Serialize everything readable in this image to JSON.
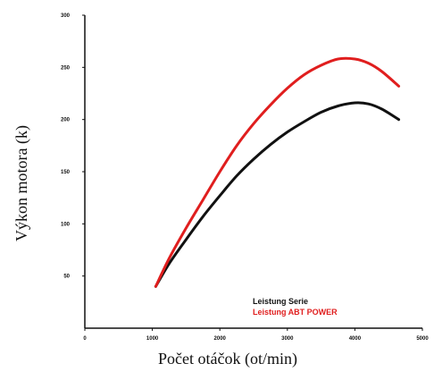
{
  "chart_data": {
    "type": "line",
    "title": "",
    "xlabel": "Počet otáčok (ot/min)",
    "ylabel": "Výkon motora (k)",
    "xlim": [
      0,
      5000
    ],
    "ylim": [
      0,
      300
    ],
    "xticks": [
      0,
      1000,
      2000,
      3000,
      4000,
      5000
    ],
    "yticks": [
      50,
      100,
      150,
      200,
      250,
      300
    ],
    "grid": false,
    "legend_position": "bottom-right",
    "series": [
      {
        "name": "Leistung Serie",
        "color": "#111111",
        "x": [
          1050,
          1250,
          1500,
          1750,
          2000,
          2250,
          2500,
          2750,
          3000,
          3250,
          3500,
          3750,
          4000,
          4200,
          4400,
          4650
        ],
        "y": [
          40,
          62,
          85,
          107,
          127,
          146,
          162,
          176,
          188,
          198,
          207,
          213,
          216,
          215,
          210,
          200
        ]
      },
      {
        "name": "Leistung ABT POWER",
        "color": "#e01e1e",
        "x": [
          1050,
          1250,
          1500,
          1750,
          2000,
          2250,
          2500,
          2750,
          3000,
          3250,
          3500,
          3750,
          4000,
          4200,
          4400,
          4650
        ],
        "y": [
          40,
          67,
          96,
          123,
          150,
          175,
          196,
          214,
          230,
          243,
          252,
          258,
          258,
          254,
          246,
          232
        ]
      }
    ]
  }
}
